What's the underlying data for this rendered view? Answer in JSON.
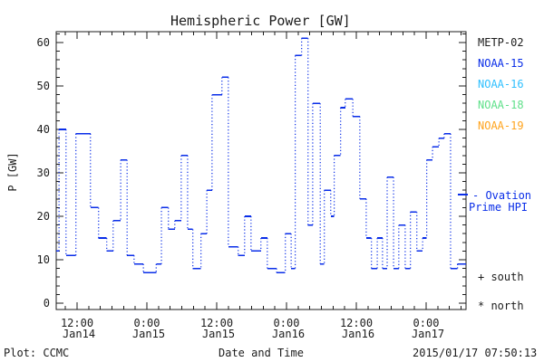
{
  "title": "Hemispheric Power [GW]",
  "axes": {
    "y": {
      "label": "P [GW]",
      "major_ticks": [
        0,
        10,
        20,
        30,
        40,
        50,
        60
      ],
      "minor_step": 2,
      "max_draw": 62
    },
    "x": {
      "label": "Date and Time",
      "major_ticks": [
        {
          "t": 12,
          "time": "12:00",
          "date": "Jan14"
        },
        {
          "t": 24,
          "time": "0:00",
          "date": "Jan15"
        },
        {
          "t": 36,
          "time": "12:00",
          "date": "Jan15"
        },
        {
          "t": 48,
          "time": "0:00",
          "date": "Jan16"
        },
        {
          "t": 60,
          "time": "12:00",
          "date": "Jan16"
        },
        {
          "t": 72,
          "time": "0:00",
          "date": "Jan17"
        }
      ],
      "minor_step_hours": 2
    }
  },
  "legend": {
    "satellites": [
      {
        "label": "METP-02",
        "color": "#1c1c1c"
      },
      {
        "label": "NOAA-15",
        "color": "#0a2ee8"
      },
      {
        "label": "NOAA-16",
        "color": "#30c0ff"
      },
      {
        "label": "NOAA-18",
        "color": "#5fe08a"
      },
      {
        "label": "NOAA-19",
        "color": "#ffa41e"
      }
    ],
    "line_label_1": "- Ovation",
    "line_label_2": "Prime HPI",
    "south_label": "+ south",
    "north_label": "* north"
  },
  "footer": {
    "plot_credit": "Plot: CCMC",
    "timestamp": "2015/01/17 07:50:13"
  },
  "chart_data": {
    "type": "line",
    "subtype": "step-post, solid horizontal segments with dotted vertical connectors",
    "title": "Hemispheric Power [GW]",
    "xlabel": "Date and Time",
    "ylabel": "P [GW]",
    "ylim": [
      0,
      62
    ],
    "x_unit": "hours since 2015-01-14 00:00 UT",
    "xlim": [
      8.4,
      79.0
    ],
    "grid": false,
    "line_color": "#0a2ee8",
    "series": [
      {
        "name": "Ovation Prime HPI",
        "steps": [
          [
            8.4,
            12
          ],
          [
            8.9,
            40
          ],
          [
            10.1,
            11
          ],
          [
            11.8,
            39
          ],
          [
            14.3,
            22
          ],
          [
            15.7,
            15
          ],
          [
            17.1,
            12
          ],
          [
            18.2,
            19
          ],
          [
            19.5,
            33
          ],
          [
            20.6,
            11
          ],
          [
            21.8,
            9
          ],
          [
            23.4,
            7
          ],
          [
            25.6,
            9
          ],
          [
            26.5,
            22
          ],
          [
            27.7,
            17
          ],
          [
            28.8,
            19
          ],
          [
            29.9,
            34
          ],
          [
            31.0,
            17
          ],
          [
            31.9,
            8
          ],
          [
            33.3,
            16
          ],
          [
            34.3,
            26
          ],
          [
            35.2,
            48
          ],
          [
            36.9,
            52
          ],
          [
            38.0,
            13
          ],
          [
            39.7,
            11
          ],
          [
            40.8,
            20
          ],
          [
            41.9,
            12
          ],
          [
            43.6,
            15
          ],
          [
            44.7,
            8
          ],
          [
            46.3,
            7
          ],
          [
            47.8,
            16
          ],
          [
            48.8,
            8
          ],
          [
            49.5,
            57
          ],
          [
            50.6,
            61
          ],
          [
            51.7,
            18
          ],
          [
            52.5,
            46
          ],
          [
            53.8,
            9
          ],
          [
            54.5,
            26
          ],
          [
            55.6,
            20
          ],
          [
            56.2,
            34
          ],
          [
            57.3,
            45
          ],
          [
            58.1,
            47
          ],
          [
            59.4,
            43
          ],
          [
            60.6,
            24
          ],
          [
            61.7,
            15
          ],
          [
            62.6,
            8
          ],
          [
            63.6,
            15
          ],
          [
            64.5,
            8
          ],
          [
            65.3,
            29
          ],
          [
            66.4,
            8
          ],
          [
            67.3,
            18
          ],
          [
            68.4,
            8
          ],
          [
            69.3,
            21
          ],
          [
            70.4,
            12
          ],
          [
            71.4,
            15
          ],
          [
            72.1,
            33
          ],
          [
            73.1,
            36
          ],
          [
            74.2,
            38
          ],
          [
            75.1,
            39
          ],
          [
            76.2,
            8
          ],
          [
            77.4,
            9
          ]
        ],
        "end_time": 79.0
      }
    ]
  }
}
